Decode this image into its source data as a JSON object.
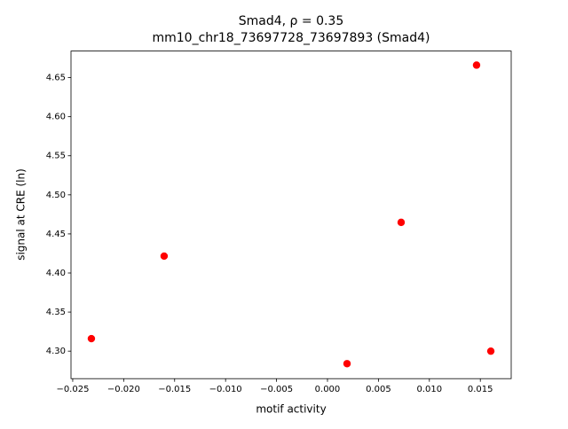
{
  "chart_data": {
    "type": "scatter",
    "title": "Smad4, ρ = 0.35",
    "subtitle": "mm10_chr18_73697728_73697893 (Smad4)",
    "x_label": "motif activity",
    "y_label": "signal at CRE (ln)",
    "color": "#ff0000",
    "x": [
      -0.02317,
      -0.01603,
      0.00192,
      0.00723,
      0.01463,
      0.01603
    ],
    "values": [
      4.316,
      4.4216,
      4.284,
      4.4648,
      4.666,
      4.3
    ],
    "xlim": [
      -0.02517,
      0.01803
    ],
    "ylim": [
      4.2648,
      4.684
    ],
    "xticks": [
      {
        "value": -0.025,
        "label": "−0.025"
      },
      {
        "value": -0.02,
        "label": "−0.020"
      },
      {
        "value": -0.015,
        "label": "−0.015"
      },
      {
        "value": -0.01,
        "label": "−0.010"
      },
      {
        "value": -0.005,
        "label": "−0.005"
      },
      {
        "value": 0,
        "label": "0.000"
      },
      0.005,
      {
        "value": 0.01,
        "label": "0.010"
      },
      0.015
    ],
    "yticks": [
      {
        "value": 4.3,
        "label": "4.30"
      },
      4.35,
      {
        "value": 4.4,
        "label": "4.40"
      },
      4.45,
      {
        "value": 4.5,
        "label": "4.50"
      },
      4.55,
      {
        "value": 4.6,
        "label": "4.60"
      },
      4.65
    ]
  }
}
